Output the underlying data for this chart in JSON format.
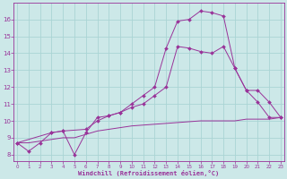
{
  "line1_x": [
    0,
    1,
    2,
    3,
    4,
    5,
    6,
    7,
    8,
    9,
    10,
    11,
    12,
    13,
    14,
    15,
    16,
    17,
    18,
    19,
    20,
    21,
    22,
    23
  ],
  "line1_y": [
    8.7,
    8.2,
    8.7,
    9.3,
    9.4,
    8.0,
    9.3,
    10.2,
    10.3,
    10.5,
    11.0,
    11.5,
    12.0,
    14.3,
    15.9,
    16.0,
    16.5,
    16.4,
    16.2,
    13.1,
    11.8,
    11.1,
    10.2,
    10.2
  ],
  "line2_x": [
    0,
    3,
    4,
    6,
    7,
    8,
    9,
    10,
    11,
    12,
    13,
    14,
    15,
    16,
    17,
    18,
    19,
    20,
    21,
    22,
    23
  ],
  "line2_y": [
    8.7,
    9.3,
    9.4,
    9.5,
    10.0,
    10.3,
    10.5,
    10.8,
    11.0,
    11.5,
    12.0,
    14.4,
    14.3,
    14.1,
    14.0,
    14.4,
    13.1,
    11.8,
    11.8,
    11.1,
    10.2
  ],
  "line3_x": [
    0,
    1,
    2,
    3,
    4,
    5,
    6,
    7,
    8,
    9,
    10,
    11,
    12,
    13,
    14,
    15,
    16,
    17,
    18,
    19,
    20,
    21,
    22,
    23
  ],
  "line3_y": [
    8.7,
    8.7,
    8.8,
    8.9,
    9.0,
    9.0,
    9.2,
    9.4,
    9.5,
    9.6,
    9.7,
    9.75,
    9.8,
    9.85,
    9.9,
    9.95,
    10.0,
    10.0,
    10.0,
    10.0,
    10.1,
    10.1,
    10.1,
    10.2
  ],
  "color": "#993399",
  "bg_color": "#cce8e8",
  "grid_color": "#aad4d4",
  "xlabel": "Windchill (Refroidissement éolien,°C)",
  "xlabel_color": "#993399",
  "xticks": [
    0,
    1,
    2,
    3,
    4,
    5,
    6,
    7,
    8,
    9,
    10,
    11,
    12,
    13,
    14,
    15,
    16,
    17,
    18,
    19,
    20,
    21,
    22,
    23
  ],
  "yticks": [
    8,
    9,
    10,
    11,
    12,
    13,
    14,
    15,
    16
  ],
  "ylim": [
    7.6,
    17.0
  ],
  "xlim": [
    -0.3,
    23.3
  ]
}
